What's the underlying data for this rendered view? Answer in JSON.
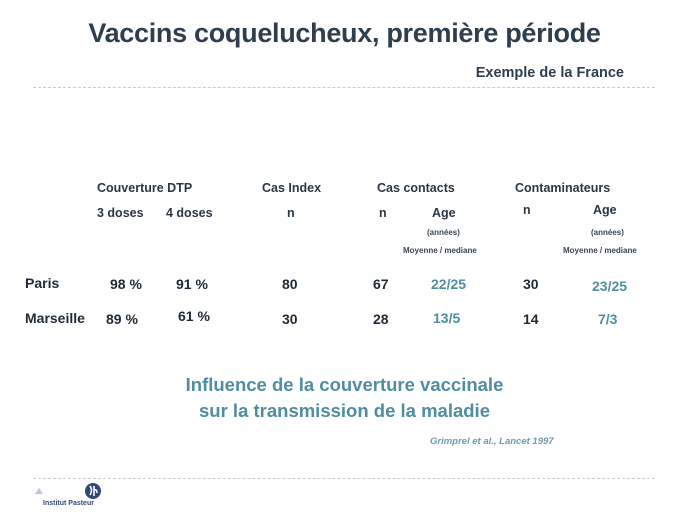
{
  "title": "Vaccins coquelucheux, première période",
  "subtitle": "Exemple de la France",
  "table": {
    "headers": {
      "coverage": "Couverture DTP",
      "index": "Cas Index",
      "contacts": "Cas contacts",
      "contaminators": "Contaminateurs"
    },
    "subheaders": {
      "doses3": "3 doses",
      "doses4": "4 doses",
      "index_n": "n",
      "contacts_n": "n",
      "contacts_age": "Age",
      "contacts_age_unit": "(années)",
      "contacts_age_stat": "Moyenne / mediane",
      "contam_n": "n",
      "contam_age": "Age",
      "contam_age_unit": "(années)",
      "contam_age_stat": "Moyenne / mediane"
    },
    "rows": [
      {
        "label": "Paris",
        "doses3": "98 %",
        "doses4": "91 %",
        "index_n": "80",
        "contacts_n": "67",
        "contacts_age": "22/25",
        "contam_n": "30",
        "contam_age": "23/25"
      },
      {
        "label": "Marseille",
        "doses3": "89 %",
        "doses4": "61 %",
        "index_n": "30",
        "contacts_n": "28",
        "contacts_age": "13/5",
        "contam_n": "14",
        "contam_age": "7/3"
      }
    ]
  },
  "conclusion": {
    "line1": "Influence de la couverture vaccinale",
    "line2": "sur la transmission de la maladie"
  },
  "reference": "Grimprel et al., Lancet 1997",
  "logo": {
    "text": "Institut Pasteur",
    "icon": "pasteur-logo-icon",
    "color": "#2f4a7a"
  },
  "colors": {
    "title": "#2f3e4e",
    "accent": "#4f8da3"
  }
}
